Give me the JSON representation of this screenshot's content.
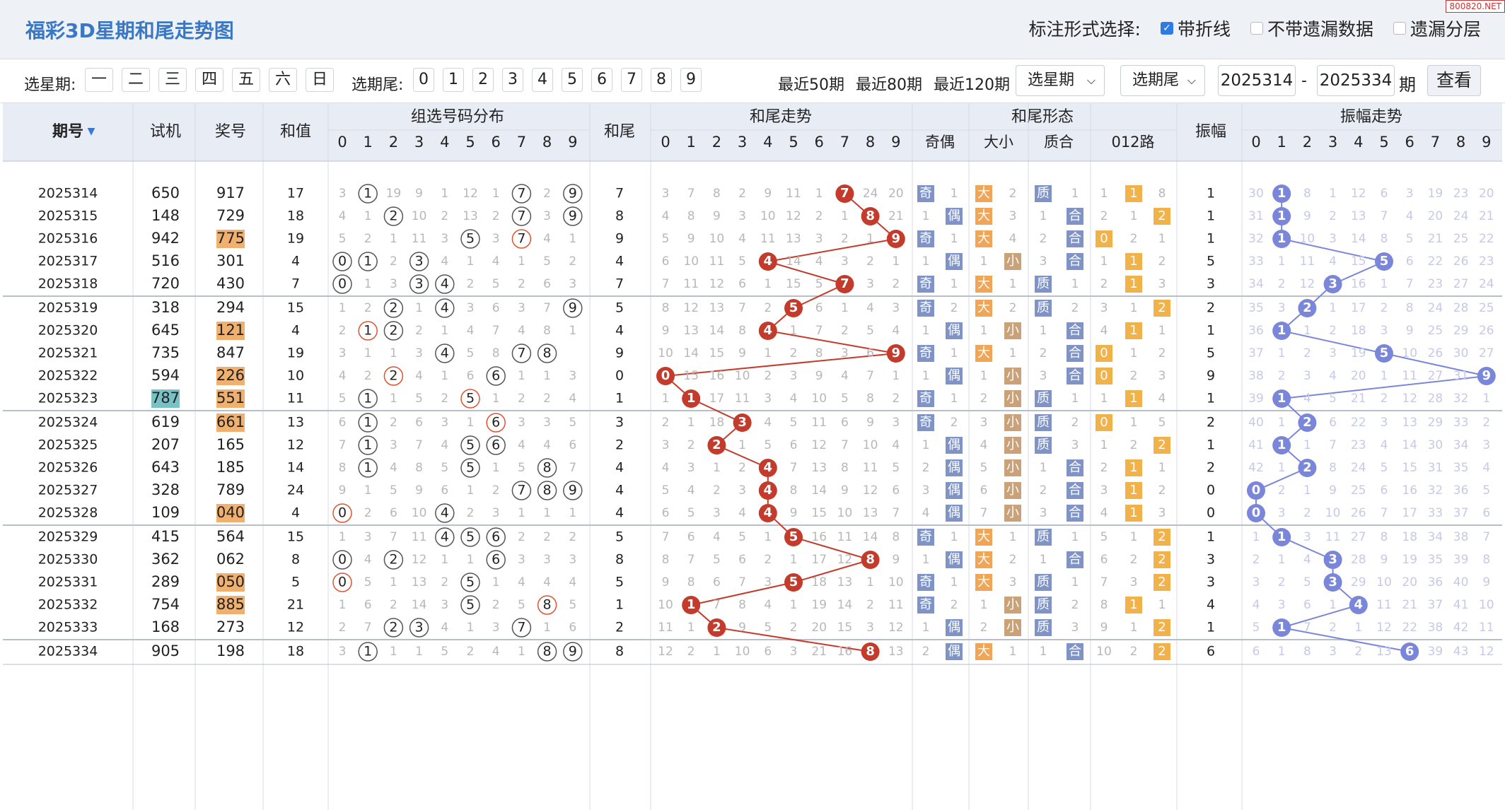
{
  "header": {
    "title": "福彩3D星期和尾走势图",
    "mode_label": "标注形式选择:",
    "options": [
      {
        "label": "带折线",
        "checked": true
      },
      {
        "label": "不带遗漏数据",
        "checked": false
      },
      {
        "label": "遗漏分层",
        "checked": false
      }
    ],
    "watermark": "800820.NET"
  },
  "filters": {
    "week_label": "选星期:",
    "weekdays": [
      "一",
      "二",
      "三",
      "四",
      "五",
      "六",
      "日"
    ],
    "tail_label": "选期尾:",
    "tails": [
      "0",
      "1",
      "2",
      "3",
      "4",
      "5",
      "6",
      "7",
      "8",
      "9"
    ],
    "recent": [
      "最近50期",
      "最近80期",
      "最近120期"
    ],
    "week_select": "选星期",
    "tail_select": "选期尾",
    "from_issue": "2025314",
    "dash": "-",
    "to_issue": "2025334",
    "issue_unit": "期",
    "query_label": "查看"
  },
  "table": {
    "headers": {
      "issue": "期号",
      "trial": "试机",
      "prize": "奖号",
      "sum": "和值",
      "group": "组选号码分布",
      "tail": "和尾",
      "tail_trend": "和尾走势",
      "shape": "和尾形态",
      "amp": "振幅",
      "amp_trend": "振幅走势"
    },
    "digits": [
      "0",
      "1",
      "2",
      "3",
      "4",
      "5",
      "6",
      "7",
      "8",
      "9"
    ],
    "shape_headers": [
      "奇偶",
      "大小",
      "质合",
      "012路"
    ],
    "shape_labels": {
      "odd": "奇",
      "even": "偶",
      "big": "大",
      "small": "小",
      "prime": "质",
      "composite": "合"
    },
    "colors": {
      "trend": "#c43a2b",
      "amp": "#7a86d9",
      "highlight": "#f0b070",
      "trial_highlight": "#78c2c6",
      "tag_blue": "#7f93c6",
      "tag_orange": "#f0a658",
      "tag_brown": "#c9a27a",
      "tag_yellow": "#f2b24a"
    },
    "rows": [
      {
        "issue": "2025314",
        "trial": "650",
        "prize": "917",
        "sum": "17",
        "tail": "7",
        "amp": "1",
        "group_miss": [
          "3",
          "",
          "19",
          "9",
          "1",
          "12",
          "1",
          "",
          "2",
          ""
        ],
        "trend_miss": [
          "3",
          "7",
          "8",
          "2",
          "9",
          "11",
          "1",
          "",
          "24",
          "20"
        ],
        "oe_miss": "1",
        "bs_miss": "2",
        "pc_miss": "1",
        "r012_miss": [
          "1",
          "",
          "8"
        ],
        "amp_miss": [
          "30",
          "",
          "8",
          "1",
          "12",
          "6",
          "3",
          "19",
          "23",
          "20"
        ]
      },
      {
        "issue": "2025315",
        "trial": "148",
        "prize": "729",
        "sum": "18",
        "tail": "8",
        "amp": "1",
        "group_miss": [
          "4",
          "1",
          "",
          "10",
          "2",
          "13",
          "2",
          "",
          "3",
          ""
        ],
        "trend_miss": [
          "4",
          "8",
          "9",
          "3",
          "10",
          "12",
          "2",
          "1",
          "",
          "21"
        ],
        "oe_miss": "1",
        "bs_miss": "3",
        "pc_miss": "1",
        "r012_miss": [
          "2",
          "1",
          ""
        ],
        "amp_miss": [
          "31",
          "",
          "9",
          "2",
          "13",
          "7",
          "4",
          "20",
          "24",
          "21"
        ]
      },
      {
        "issue": "2025316",
        "trial": "942",
        "prize": "775",
        "sum": "19",
        "tail": "9",
        "amp": "1",
        "group_miss": [
          "5",
          "2",
          "1",
          "11",
          "3",
          "",
          "3",
          "",
          "4",
          "1"
        ],
        "trend_miss": [
          "5",
          "9",
          "10",
          "4",
          "11",
          "13",
          "3",
          "2",
          "1",
          ""
        ],
        "oe_miss": "1",
        "bs_miss": "4",
        "pc_miss": "2",
        "r012_miss": [
          "",
          "2",
          "1"
        ],
        "amp_miss": [
          "32",
          "",
          "10",
          "3",
          "14",
          "8",
          "5",
          "21",
          "25",
          "22"
        ]
      },
      {
        "issue": "2025317",
        "trial": "516",
        "prize": "301",
        "sum": "4",
        "tail": "4",
        "amp": "5",
        "group_miss": [
          "",
          "",
          "2",
          "",
          "4",
          "1",
          "4",
          "1",
          "5",
          "2"
        ],
        "trend_miss": [
          "6",
          "10",
          "11",
          "5",
          "",
          "14",
          "4",
          "3",
          "2",
          "1"
        ],
        "oe_miss": "1",
        "bs_miss": "1",
        "pc_miss": "3",
        "r012_miss": [
          "1",
          "",
          "2"
        ],
        "amp_miss": [
          "33",
          "1",
          "11",
          "4",
          "15",
          "",
          "6",
          "22",
          "26",
          "23"
        ]
      },
      {
        "issue": "2025318",
        "trial": "720",
        "prize": "430",
        "sum": "7",
        "tail": "7",
        "amp": "3",
        "group_miss": [
          "",
          "1",
          "3",
          "",
          "",
          "2",
          "5",
          "2",
          "6",
          "3"
        ],
        "trend_miss": [
          "7",
          "11",
          "12",
          "6",
          "1",
          "15",
          "5",
          "",
          "3",
          "2"
        ],
        "oe_miss": "1",
        "bs_miss": "1",
        "pc_miss": "1",
        "r012_miss": [
          "2",
          "",
          "3"
        ],
        "amp_miss": [
          "34",
          "2",
          "12",
          "",
          "16",
          "1",
          "7",
          "23",
          "27",
          "24"
        ]
      },
      {
        "issue": "2025319",
        "trial": "318",
        "prize": "294",
        "sum": "15",
        "tail": "5",
        "amp": "2",
        "group_miss": [
          "1",
          "2",
          "",
          "1",
          "",
          "3",
          "6",
          "3",
          "7",
          ""
        ],
        "trend_miss": [
          "8",
          "12",
          "13",
          "7",
          "2",
          "",
          "6",
          "1",
          "4",
          "3"
        ],
        "oe_miss": "2",
        "bs_miss": "2",
        "pc_miss": "2",
        "r012_miss": [
          "3",
          "1",
          ""
        ],
        "amp_miss": [
          "35",
          "3",
          "",
          "1",
          "17",
          "2",
          "8",
          "24",
          "28",
          "25"
        ]
      },
      {
        "issue": "2025320",
        "trial": "645",
        "prize": "121",
        "sum": "4",
        "tail": "4",
        "amp": "1",
        "group_miss": [
          "2",
          "",
          "",
          "2",
          "1",
          "4",
          "7",
          "4",
          "8",
          "1"
        ],
        "trend_miss": [
          "9",
          "13",
          "14",
          "8",
          "",
          "1",
          "7",
          "2",
          "5",
          "4"
        ],
        "oe_miss": "1",
        "bs_miss": "1",
        "pc_miss": "1",
        "r012_miss": [
          "4",
          "",
          "1"
        ],
        "amp_miss": [
          "36",
          "",
          "1",
          "2",
          "18",
          "3",
          "9",
          "25",
          "29",
          "26"
        ]
      },
      {
        "issue": "2025321",
        "trial": "735",
        "prize": "847",
        "sum": "19",
        "tail": "9",
        "amp": "5",
        "group_miss": [
          "3",
          "1",
          "1",
          "3",
          "",
          "5",
          "8",
          "",
          "",
          ""
        ],
        "trend_miss": [
          "10",
          "14",
          "15",
          "9",
          "1",
          "2",
          "8",
          "3",
          "6",
          ""
        ],
        "oe_miss": "1",
        "bs_miss": "1",
        "pc_miss": "2",
        "r012_miss": [
          "",
          "1",
          "2"
        ],
        "amp_miss": [
          "37",
          "1",
          "2",
          "3",
          "19",
          "",
          "10",
          "26",
          "30",
          "27"
        ]
      },
      {
        "issue": "2025322",
        "trial": "594",
        "prize": "226",
        "sum": "10",
        "tail": "0",
        "amp": "9",
        "group_miss": [
          "4",
          "2",
          "",
          "4",
          "1",
          "6",
          "",
          "1",
          "1",
          "3"
        ],
        "trend_miss": [
          "",
          "15",
          "16",
          "10",
          "2",
          "3",
          "9",
          "4",
          "7",
          "1"
        ],
        "oe_miss": "1",
        "bs_miss": "1",
        "pc_miss": "3",
        "r012_miss": [
          "",
          "2",
          "3"
        ],
        "amp_miss": [
          "38",
          "2",
          "3",
          "4",
          "20",
          "1",
          "11",
          "27",
          "31",
          ""
        ]
      },
      {
        "issue": "2025323",
        "trial": "787",
        "prize": "551",
        "sum": "11",
        "tail": "1",
        "amp": "1",
        "group_miss": [
          "5",
          "",
          "1",
          "5",
          "2",
          "",
          "1",
          "2",
          "2",
          "4"
        ],
        "trend_miss": [
          "1",
          "",
          "17",
          "11",
          "3",
          "4",
          "10",
          "5",
          "8",
          "2"
        ],
        "oe_miss": "1",
        "bs_miss": "2",
        "pc_miss": "1",
        "r012_miss": [
          "1",
          "",
          "4"
        ],
        "amp_miss": [
          "39",
          "",
          "4",
          "5",
          "21",
          "2",
          "12",
          "28",
          "32",
          "1"
        ]
      },
      {
        "issue": "2025324",
        "trial": "619",
        "prize": "661",
        "sum": "13",
        "tail": "3",
        "amp": "2",
        "group_miss": [
          "6",
          "",
          "2",
          "6",
          "3",
          "1",
          "",
          "3",
          "3",
          "5"
        ],
        "trend_miss": [
          "2",
          "1",
          "18",
          "",
          "4",
          "5",
          "11",
          "6",
          "9",
          "3"
        ],
        "oe_miss": "2",
        "bs_miss": "3",
        "pc_miss": "2",
        "r012_miss": [
          "",
          "1",
          "5"
        ],
        "amp_miss": [
          "40",
          "1",
          "",
          "6",
          "22",
          "3",
          "13",
          "29",
          "33",
          "2"
        ]
      },
      {
        "issue": "2025325",
        "trial": "207",
        "prize": "165",
        "sum": "12",
        "tail": "2",
        "amp": "1",
        "group_miss": [
          "7",
          "",
          "3",
          "7",
          "4",
          "",
          "",
          "4",
          "4",
          "6"
        ],
        "trend_miss": [
          "3",
          "2",
          "",
          "1",
          "5",
          "6",
          "12",
          "7",
          "10",
          "4"
        ],
        "oe_miss": "1",
        "bs_miss": "4",
        "pc_miss": "3",
        "r012_miss": [
          "1",
          "2",
          ""
        ],
        "amp_miss": [
          "41",
          "",
          "1",
          "7",
          "23",
          "4",
          "14",
          "30",
          "34",
          "3"
        ]
      },
      {
        "issue": "2025326",
        "trial": "643",
        "prize": "185",
        "sum": "14",
        "tail": "4",
        "amp": "2",
        "group_miss": [
          "8",
          "",
          "4",
          "8",
          "5",
          "",
          "1",
          "5",
          "",
          "7"
        ],
        "trend_miss": [
          "4",
          "3",
          "1",
          "2",
          "",
          "7",
          "13",
          "8",
          "11",
          "5"
        ],
        "oe_miss": "2",
        "bs_miss": "5",
        "pc_miss": "1",
        "r012_miss": [
          "2",
          "",
          "1"
        ],
        "amp_miss": [
          "42",
          "1",
          "",
          "8",
          "24",
          "5",
          "15",
          "31",
          "35",
          "4"
        ]
      },
      {
        "issue": "2025327",
        "trial": "328",
        "prize": "789",
        "sum": "24",
        "tail": "4",
        "amp": "0",
        "group_miss": [
          "9",
          "1",
          "5",
          "9",
          "6",
          "1",
          "2",
          "",
          "",
          ""
        ],
        "trend_miss": [
          "5",
          "4",
          "2",
          "3",
          "",
          "8",
          "14",
          "9",
          "12",
          "6"
        ],
        "oe_miss": "3",
        "bs_miss": "6",
        "pc_miss": "2",
        "r012_miss": [
          "3",
          "",
          "2"
        ],
        "amp_miss": [
          "",
          "2",
          "1",
          "9",
          "25",
          "6",
          "16",
          "32",
          "36",
          "5"
        ]
      },
      {
        "issue": "2025328",
        "trial": "109",
        "prize": "040",
        "sum": "4",
        "tail": "4",
        "amp": "0",
        "group_miss": [
          "",
          "2",
          "6",
          "10",
          "",
          "2",
          "3",
          "1",
          "1",
          "1"
        ],
        "trend_miss": [
          "6",
          "5",
          "3",
          "4",
          "",
          "9",
          "15",
          "10",
          "13",
          "7"
        ],
        "oe_miss": "4",
        "bs_miss": "7",
        "pc_miss": "3",
        "r012_miss": [
          "4",
          "",
          "3"
        ],
        "amp_miss": [
          "",
          "3",
          "2",
          "10",
          "26",
          "7",
          "17",
          "33",
          "37",
          "6"
        ]
      },
      {
        "issue": "2025329",
        "trial": "415",
        "prize": "564",
        "sum": "15",
        "tail": "5",
        "amp": "1",
        "group_miss": [
          "1",
          "3",
          "7",
          "11",
          "",
          "",
          "",
          "2",
          "2",
          "2"
        ],
        "trend_miss": [
          "7",
          "6",
          "4",
          "5",
          "1",
          "",
          "16",
          "11",
          "14",
          "8"
        ],
        "oe_miss": "1",
        "bs_miss": "1",
        "pc_miss": "1",
        "r012_miss": [
          "5",
          "1",
          ""
        ],
        "amp_miss": [
          "1",
          "",
          "3",
          "11",
          "27",
          "8",
          "18",
          "34",
          "38",
          "7"
        ]
      },
      {
        "issue": "2025330",
        "trial": "362",
        "prize": "062",
        "sum": "8",
        "tail": "8",
        "amp": "3",
        "group_miss": [
          "",
          "4",
          "",
          "12",
          "1",
          "1",
          "",
          "3",
          "3",
          "3"
        ],
        "trend_miss": [
          "8",
          "7",
          "5",
          "6",
          "2",
          "1",
          "17",
          "12",
          "",
          "9"
        ],
        "oe_miss": "1",
        "bs_miss": "2",
        "pc_miss": "1",
        "r012_miss": [
          "6",
          "2",
          ""
        ],
        "amp_miss": [
          "2",
          "1",
          "4",
          "",
          "28",
          "9",
          "19",
          "35",
          "39",
          "8"
        ]
      },
      {
        "issue": "2025331",
        "trial": "289",
        "prize": "050",
        "sum": "5",
        "tail": "5",
        "amp": "3",
        "group_miss": [
          "",
          "5",
          "1",
          "13",
          "2",
          "",
          "1",
          "4",
          "4",
          "4"
        ],
        "trend_miss": [
          "9",
          "8",
          "6",
          "7",
          "3",
          "",
          "18",
          "13",
          "1",
          "10"
        ],
        "oe_miss": "1",
        "bs_miss": "3",
        "pc_miss": "1",
        "r012_miss": [
          "7",
          "3",
          ""
        ],
        "amp_miss": [
          "3",
          "2",
          "5",
          "",
          "29",
          "10",
          "20",
          "36",
          "40",
          "9"
        ]
      },
      {
        "issue": "2025332",
        "trial": "754",
        "prize": "885",
        "sum": "21",
        "tail": "1",
        "amp": "4",
        "group_miss": [
          "1",
          "6",
          "2",
          "14",
          "3",
          "",
          "2",
          "5",
          "",
          "5"
        ],
        "trend_miss": [
          "10",
          "",
          "7",
          "8",
          "4",
          "1",
          "19",
          "14",
          "2",
          "11"
        ],
        "oe_miss": "2",
        "bs_miss": "1",
        "pc_miss": "2",
        "r012_miss": [
          "8",
          "",
          "1"
        ],
        "amp_miss": [
          "4",
          "3",
          "6",
          "1",
          "",
          "11",
          "21",
          "37",
          "41",
          "10"
        ]
      },
      {
        "issue": "2025333",
        "trial": "168",
        "prize": "273",
        "sum": "12",
        "tail": "2",
        "amp": "1",
        "group_miss": [
          "2",
          "7",
          "",
          "",
          "4",
          "1",
          "3",
          "",
          "1",
          "6"
        ],
        "trend_miss": [
          "11",
          "1",
          "",
          "9",
          "5",
          "2",
          "20",
          "15",
          "3",
          "12"
        ],
        "oe_miss": "1",
        "bs_miss": "2",
        "pc_miss": "3",
        "r012_miss": [
          "9",
          "1",
          ""
        ],
        "amp_miss": [
          "5",
          "",
          "7",
          "2",
          "1",
          "12",
          "22",
          "38",
          "42",
          "11"
        ]
      },
      {
        "issue": "2025334",
        "trial": "905",
        "prize": "198",
        "sum": "18",
        "tail": "8",
        "amp": "6",
        "group_miss": [
          "3",
          "",
          "1",
          "1",
          "5",
          "2",
          "4",
          "1",
          "",
          ""
        ],
        "trend_miss": [
          "12",
          "2",
          "1",
          "10",
          "6",
          "3",
          "21",
          "16",
          "",
          "13"
        ],
        "oe_miss": "2",
        "bs_miss": "1",
        "pc_miss": "1",
        "r012_miss": [
          "10",
          "2",
          ""
        ],
        "amp_miss": [
          "6",
          "1",
          "8",
          "3",
          "2",
          "13",
          "",
          "39",
          "43",
          "12"
        ]
      }
    ]
  }
}
